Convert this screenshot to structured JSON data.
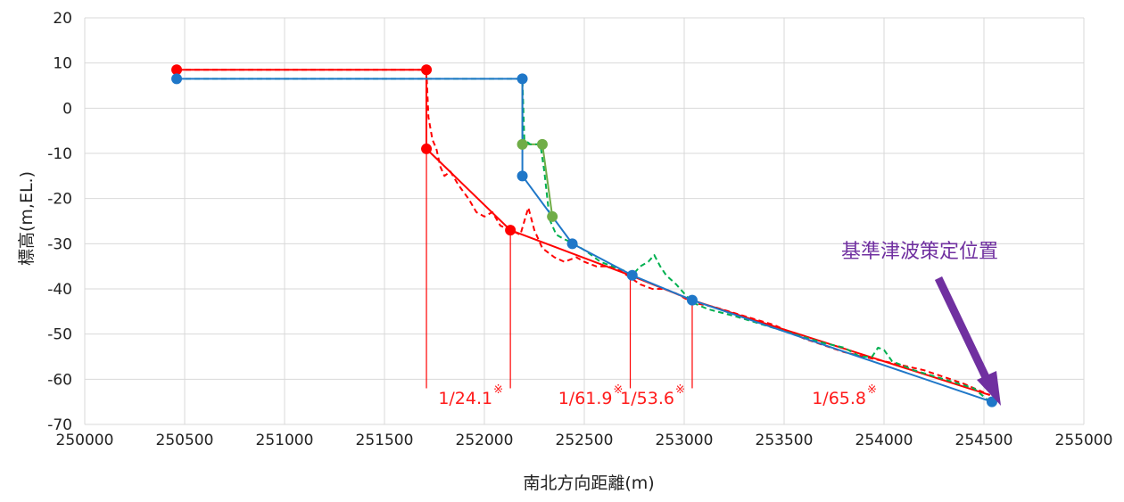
{
  "chart_data": {
    "type": "line",
    "title": "",
    "xlabel": "南北方向距離(m)",
    "ylabel": "標高(m,EL.)",
    "xlim": [
      250000,
      255000
    ],
    "ylim": [
      -70,
      20
    ],
    "xticks": [
      "250000",
      "250500",
      "251000",
      "251500",
      "252000",
      "252500",
      "253000",
      "253500",
      "254000",
      "254500",
      "255000"
    ],
    "yticks": [
      "20",
      "10",
      "0",
      "-10",
      "-20",
      "-30",
      "-40",
      "-50",
      "-60",
      "-70"
    ],
    "grid": true,
    "legend": "none",
    "series": [
      {
        "color": "#ff0000",
        "style": "solid",
        "markers": true,
        "points": [
          [
            250460,
            8.5
          ],
          [
            251710,
            8.5
          ],
          [
            251710,
            -9
          ],
          [
            252130,
            -27
          ],
          [
            252730,
            -37
          ],
          [
            253040,
            -42.5
          ],
          [
            254530,
            -63.5
          ]
        ],
        "marker_indices": [
          0,
          1,
          2,
          3
        ]
      },
      {
        "color": "#ff0000",
        "style": "dashed",
        "markers": false,
        "points": [
          [
            250460,
            8.5
          ],
          [
            251710,
            8.5
          ],
          [
            251720,
            -2
          ],
          [
            251740,
            -7
          ],
          [
            251760,
            -9
          ],
          [
            251780,
            -13
          ],
          [
            251800,
            -15
          ],
          [
            251830,
            -14
          ],
          [
            251870,
            -17
          ],
          [
            251920,
            -20
          ],
          [
            251960,
            -23
          ],
          [
            252000,
            -24
          ],
          [
            252040,
            -23
          ],
          [
            252080,
            -26
          ],
          [
            252130,
            -27
          ],
          [
            252180,
            -28
          ],
          [
            252220,
            -22
          ],
          [
            252250,
            -27
          ],
          [
            252290,
            -31
          ],
          [
            252350,
            -33
          ],
          [
            252400,
            -34
          ],
          [
            252460,
            -33
          ],
          [
            252500,
            -34
          ],
          [
            252560,
            -35
          ],
          [
            252620,
            -35
          ],
          [
            252680,
            -36
          ],
          [
            252730,
            -37.5
          ],
          [
            252780,
            -39
          ],
          [
            252840,
            -40
          ],
          [
            252900,
            -40
          ],
          [
            252960,
            -41
          ],
          [
            253040,
            -43
          ],
          [
            253150,
            -44
          ],
          [
            253300,
            -46
          ],
          [
            253450,
            -48
          ],
          [
            253600,
            -51
          ],
          [
            253800,
            -54
          ],
          [
            254000,
            -56
          ],
          [
            254200,
            -58
          ],
          [
            254400,
            -61
          ],
          [
            254530,
            -63.5
          ]
        ]
      },
      {
        "color": "#70ad47",
        "style": "solid",
        "markers": true,
        "points": [
          [
            252190,
            6.5
          ],
          [
            252190,
            -8
          ],
          [
            252290,
            -8
          ],
          [
            252340,
            -24
          ]
        ],
        "marker_indices": [
          1,
          2,
          3
        ]
      },
      {
        "color": "#00b050",
        "style": "dashed",
        "markers": false,
        "points": [
          [
            250460,
            6.5
          ],
          [
            252190,
            6.5
          ],
          [
            252200,
            -7
          ],
          [
            252230,
            -8
          ],
          [
            252280,
            -8
          ],
          [
            252300,
            -14
          ],
          [
            252310,
            -18
          ],
          [
            252320,
            -22
          ],
          [
            252330,
            -25
          ],
          [
            252360,
            -28
          ],
          [
            252400,
            -29
          ],
          [
            252450,
            -30
          ],
          [
            252520,
            -32
          ],
          [
            252580,
            -34
          ],
          [
            252640,
            -35
          ],
          [
            252700,
            -36
          ],
          [
            252740,
            -37
          ],
          [
            252780,
            -35
          ],
          [
            252820,
            -34
          ],
          [
            252850,
            -32.5
          ],
          [
            252880,
            -35
          ],
          [
            252910,
            -37
          ],
          [
            252960,
            -39
          ],
          [
            253000,
            -41
          ],
          [
            253040,
            -43
          ],
          [
            253120,
            -44.5
          ],
          [
            253250,
            -46
          ],
          [
            253400,
            -48
          ],
          [
            253550,
            -50
          ],
          [
            253700,
            -52
          ],
          [
            253800,
            -53
          ],
          [
            253880,
            -55
          ],
          [
            253940,
            -55
          ],
          [
            253970,
            -53
          ],
          [
            254000,
            -53.5
          ],
          [
            254040,
            -56
          ],
          [
            254150,
            -58
          ],
          [
            254300,
            -60
          ],
          [
            254450,
            -62
          ],
          [
            254530,
            -65
          ]
        ]
      },
      {
        "color": "#1f77c8",
        "style": "solid",
        "markers": true,
        "points": [
          [
            250460,
            6.5
          ],
          [
            252190,
            6.5
          ],
          [
            252190,
            -15
          ],
          [
            252440,
            -30
          ],
          [
            252740,
            -37
          ],
          [
            253040,
            -42.5
          ],
          [
            254540,
            -65
          ]
        ],
        "marker_indices": [
          0,
          1,
          2,
          3,
          4,
          5,
          6
        ]
      }
    ],
    "slope_labels": [
      {
        "text": "1/24.1",
        "mark": "※",
        "x": 252130
      },
      {
        "text": "1/61.9",
        "mark": "※",
        "x": 252730
      },
      {
        "text": "1/53.6",
        "mark": "※",
        "x": 253040
      },
      {
        "text": "1/65.8",
        "mark": "※",
        "x": 254000
      }
    ],
    "vertical_lines": [
      251710,
      252130,
      252730,
      253040
    ],
    "annotation": {
      "text": "基準津波策定位置",
      "color": "#7030a0"
    }
  }
}
